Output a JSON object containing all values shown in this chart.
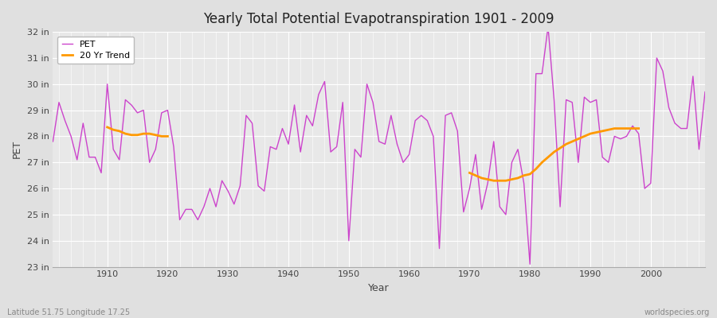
{
  "title": "Yearly Total Potential Evapotranspiration 1901 - 2009",
  "xlabel": "Year",
  "ylabel": "PET",
  "lat_lon_label": "Latitude 51.75 Longitude 17.25",
  "watermark": "worldspecies.org",
  "pet_color": "#cc44cc",
  "trend_color": "#ff9900",
  "bg_color": "#e0e0e0",
  "plot_bg_color": "#e8e8e8",
  "ylim_min": 23,
  "ylim_max": 32,
  "years": [
    1901,
    1902,
    1903,
    1904,
    1905,
    1906,
    1907,
    1908,
    1909,
    1910,
    1911,
    1912,
    1913,
    1914,
    1915,
    1916,
    1917,
    1918,
    1919,
    1920,
    1921,
    1922,
    1923,
    1924,
    1925,
    1926,
    1927,
    1928,
    1929,
    1930,
    1931,
    1932,
    1933,
    1934,
    1935,
    1936,
    1937,
    1938,
    1939,
    1940,
    1941,
    1942,
    1943,
    1944,
    1945,
    1946,
    1947,
    1948,
    1949,
    1950,
    1951,
    1952,
    1953,
    1954,
    1955,
    1956,
    1957,
    1958,
    1959,
    1960,
    1961,
    1962,
    1963,
    1964,
    1965,
    1966,
    1967,
    1968,
    1969,
    1970,
    1971,
    1972,
    1973,
    1974,
    1975,
    1976,
    1977,
    1978,
    1979,
    1980,
    1981,
    1982,
    1983,
    1984,
    1985,
    1986,
    1987,
    1988,
    1989,
    1990,
    1991,
    1992,
    1993,
    1994,
    1995,
    1996,
    1997,
    1998,
    1999,
    2000,
    2001,
    2002,
    2003,
    2004,
    2005,
    2006,
    2007,
    2008,
    2009
  ],
  "pet_values": [
    27.8,
    29.3,
    28.6,
    28.0,
    27.1,
    28.5,
    27.2,
    27.2,
    26.6,
    30.0,
    27.5,
    27.1,
    29.4,
    29.2,
    28.9,
    29.0,
    27.0,
    27.5,
    28.9,
    29.0,
    27.6,
    24.8,
    25.2,
    25.2,
    24.8,
    25.3,
    26.0,
    25.3,
    26.3,
    25.9,
    25.4,
    26.1,
    28.8,
    28.5,
    26.1,
    25.9,
    27.6,
    27.5,
    28.3,
    27.7,
    29.2,
    27.4,
    28.8,
    28.4,
    29.6,
    30.1,
    27.4,
    27.6,
    29.3,
    24.0,
    27.5,
    27.2,
    30.0,
    29.3,
    27.8,
    27.7,
    28.8,
    27.7,
    27.0,
    27.3,
    28.6,
    28.8,
    28.6,
    28.0,
    23.7,
    28.8,
    28.9,
    28.2,
    25.1,
    26.0,
    27.3,
    25.2,
    26.2,
    27.8,
    25.3,
    25.0,
    27.0,
    27.5,
    26.2,
    23.1,
    30.4,
    30.4,
    32.2,
    29.4,
    25.3,
    29.4,
    29.3,
    27.0,
    29.5,
    29.3,
    29.4,
    27.2,
    27.0,
    28.0,
    27.9,
    28.0,
    28.4,
    28.1,
    26.0,
    26.2,
    31.0,
    30.5,
    29.1,
    28.5,
    28.3,
    28.3,
    30.3,
    27.5,
    29.7
  ],
  "trend_segment1_years": [
    1910,
    1911,
    1912,
    1913,
    1914,
    1915,
    1916,
    1917,
    1918,
    1919,
    1920
  ],
  "trend_segment1_values": [
    28.35,
    28.25,
    28.2,
    28.1,
    28.05,
    28.05,
    28.1,
    28.1,
    28.05,
    28.0,
    28.0
  ],
  "trend_segment2_years": [
    1970,
    1971,
    1972,
    1973,
    1974,
    1975,
    1976,
    1977,
    1978,
    1979,
    1980,
    1981,
    1982,
    1983,
    1984,
    1985,
    1986,
    1987,
    1988,
    1989,
    1990,
    1991,
    1992,
    1993,
    1994,
    1995,
    1996,
    1997,
    1998
  ],
  "trend_segment2_values": [
    26.6,
    26.5,
    26.4,
    26.35,
    26.3,
    26.3,
    26.3,
    26.35,
    26.4,
    26.5,
    26.55,
    26.75,
    27.0,
    27.2,
    27.4,
    27.55,
    27.7,
    27.8,
    27.9,
    28.0,
    28.1,
    28.15,
    28.2,
    28.25,
    28.3,
    28.3,
    28.3,
    28.3,
    28.3
  ]
}
